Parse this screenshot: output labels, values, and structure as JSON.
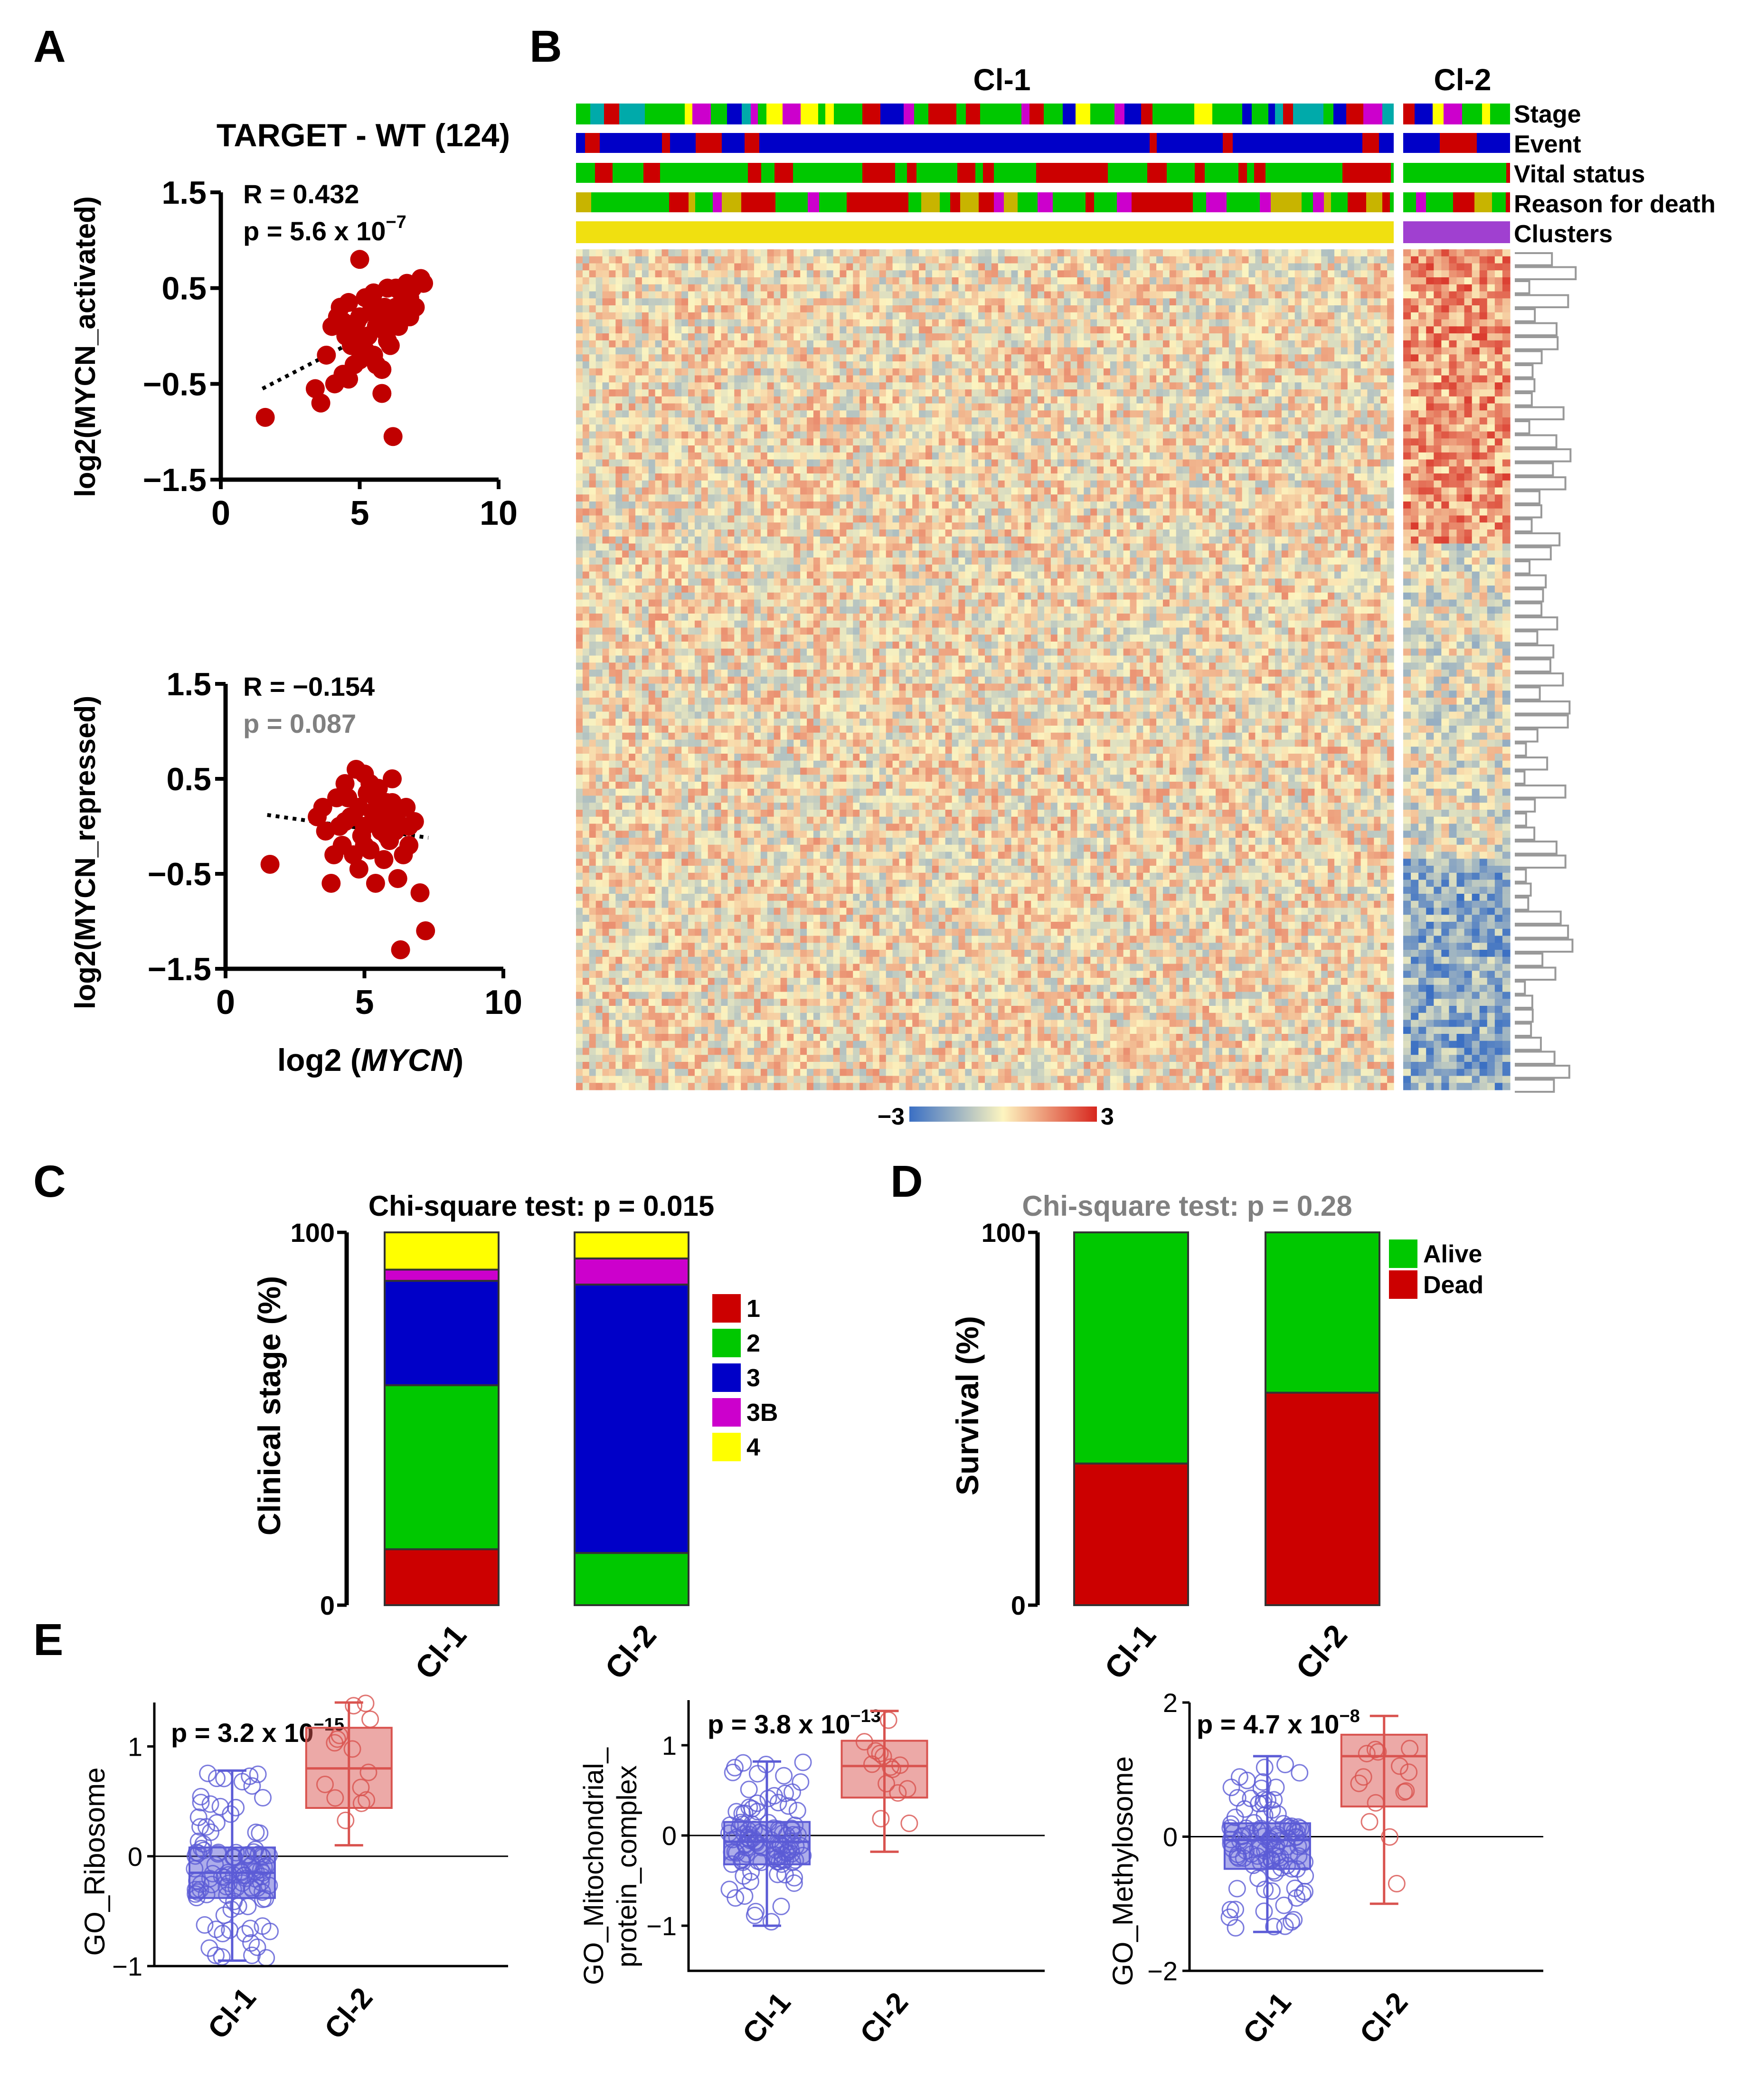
{
  "panels": [
    "A",
    "B",
    "C",
    "D",
    "E"
  ],
  "chart_data": [
    {
      "id": "A1",
      "type": "scatter",
      "title": "TARGET - WT (124)",
      "xlabel": "",
      "ylabel": "log2(MYCN_activated)",
      "xlim": [
        0,
        10
      ],
      "ylim": [
        -1.5,
        1.5
      ],
      "xticks": [
        "0",
        "5",
        "10"
      ],
      "yticks": [
        "1.5",
        "0.5",
        "−0.5",
        "−1.5"
      ],
      "stat_r": "R = 0.432",
      "stat_p_base": "p = 5.6 x 10",
      "stat_p_exp": "−7",
      "color": "#c00000",
      "trend": {
        "x": [
          1.5,
          7.3
        ],
        "y": [
          -0.55,
          0.32
        ]
      },
      "x": [
        1.6,
        3.4,
        3.8,
        4.0,
        4.3,
        4.4,
        4.5,
        4.6,
        4.7,
        4.8,
        4.9,
        5.0,
        5.0,
        5.1,
        5.2,
        5.3,
        5.4,
        5.5,
        5.5,
        5.6,
        5.7,
        5.8,
        5.9,
        6.0,
        6.0,
        6.1,
        6.2,
        6.3,
        6.4,
        6.5,
        6.6,
        6.7,
        6.8,
        6.9,
        7.0,
        7.2,
        7.3,
        3.6,
        4.1,
        4.6,
        5.2,
        5.8,
        6.2,
        4.8,
        5.6,
        6.5,
        4.2,
        5.4,
        6.0,
        6.8,
        5.0,
        4.4,
        5.9,
        6.3
      ],
      "y": [
        -0.85,
        -0.55,
        -0.2,
        0.1,
        0.3,
        -0.4,
        0.0,
        0.35,
        -0.1,
        -0.3,
        0.15,
        0.8,
        0.2,
        -0.05,
        0.4,
        0.0,
        0.25,
        -0.2,
        0.45,
        0.1,
        0.3,
        -0.35,
        0.05,
        0.5,
        0.2,
        -0.1,
        -1.05,
        0.3,
        0.1,
        0.45,
        0.35,
        0.55,
        0.2,
        0.5,
        0.3,
        0.6,
        0.55,
        -0.7,
        -0.5,
        -0.45,
        -0.15,
        -0.6,
        0.1,
        0.05,
        -0.3,
        0.25,
        0.2,
        0.35,
        -0.05,
        0.4,
        -0.25,
        0.15,
        0.3,
        0.5
      ]
    },
    {
      "id": "A2",
      "type": "scatter",
      "xlabel": "log2 (MYCN)",
      "xlabel_prefix": "log2 (",
      "xlabel_italic": "MYCN",
      "xlabel_suffix": ")",
      "ylabel": "log2(MYCN_repressed)",
      "xlim": [
        0,
        10
      ],
      "ylim": [
        -1.5,
        1.5
      ],
      "xticks": [
        "0",
        "5",
        "10"
      ],
      "yticks": [
        "1.5",
        "0.5",
        "−0.5",
        "−1.5"
      ],
      "stat_r": "R = −0.154",
      "stat_p": "p = 0.087",
      "color": "#c00000",
      "trend": {
        "x": [
          1.5,
          7.3
        ],
        "y": [
          0.12,
          -0.12
        ]
      },
      "x": [
        1.6,
        3.3,
        3.6,
        3.8,
        4.0,
        4.2,
        4.3,
        4.5,
        4.6,
        4.7,
        4.8,
        4.9,
        5.0,
        5.0,
        5.1,
        5.2,
        5.3,
        5.4,
        5.5,
        5.6,
        5.7,
        5.8,
        5.9,
        6.0,
        6.1,
        6.2,
        6.3,
        6.5,
        6.6,
        6.8,
        7.0,
        7.2,
        3.5,
        4.1,
        4.4,
        4.8,
        5.2,
        5.6,
        6.0,
        6.4,
        4.6,
        5.4,
        5.8,
        6.2,
        3.9,
        5.0,
        6.6,
        4.3,
        5.7,
        6.1
      ],
      "y": [
        -0.4,
        0.1,
        -0.05,
        -0.6,
        0.3,
        -0.2,
        0.45,
        0.1,
        -0.3,
        0.6,
        0.2,
        -0.1,
        0.55,
        0.0,
        0.35,
        -0.25,
        0.15,
        -0.6,
        0.4,
        0.05,
        -0.35,
        0.25,
        -0.15,
        0.5,
        0.1,
        -0.55,
        -1.3,
        0.2,
        -0.2,
        0.05,
        -0.7,
        -1.1,
        0.2,
        0.0,
        0.3,
        -0.45,
        0.45,
        -0.05,
        0.25,
        -0.3,
        0.1,
        0.3,
        -0.1,
        0.15,
        -0.3,
        -0.2,
        0.0,
        0.05,
        0.2,
        -0.05
      ]
    },
    {
      "id": "B",
      "type": "heatmap",
      "groups": [
        "Cl-1",
        "Cl-2"
      ],
      "annotation_rows": [
        "Stage",
        "Event",
        "Vital status",
        "Reason for death",
        "Clusters"
      ],
      "scale_min": "−3",
      "scale_max": "3",
      "scale_colors": [
        "#3a6fc4",
        "#fdf5c0",
        "#d7261e"
      ]
    },
    {
      "id": "C",
      "type": "bar",
      "stacked": true,
      "title": "Chi-square test: p = 0.015",
      "ylabel": "Clinical stage (%)",
      "categories": [
        "Cl-1",
        "Cl-2"
      ],
      "ylim": [
        0,
        100
      ],
      "yticks": [
        "0",
        "100"
      ],
      "series": [
        {
          "name": "1",
          "color": "#cc0000",
          "values": [
            15,
            0
          ]
        },
        {
          "name": "2",
          "color": "#00c800",
          "values": [
            44,
            14
          ]
        },
        {
          "name": "3",
          "color": "#0000c8",
          "values": [
            28,
            72
          ]
        },
        {
          "name": "3B",
          "color": "#cc00cc",
          "values": [
            3,
            7
          ]
        },
        {
          "name": "4",
          "color": "#ffff00",
          "values": [
            10,
            7
          ]
        }
      ]
    },
    {
      "id": "D",
      "type": "bar",
      "stacked": true,
      "title": "Chi-square test: p = 0.28",
      "ylabel": "Survival (%)",
      "categories": [
        "Cl-1",
        "Cl-2"
      ],
      "ylim": [
        0,
        100
      ],
      "yticks": [
        "0",
        "100"
      ],
      "series": [
        {
          "name": "Dead",
          "color": "#cc0000",
          "values": [
            38,
            57
          ]
        },
        {
          "name": "Alive",
          "color": "#00c800",
          "values": [
            62,
            43
          ]
        }
      ],
      "legend_order": [
        "Alive",
        "Dead"
      ]
    },
    {
      "id": "E1",
      "type": "box",
      "ylabel": "GO_Ribosome",
      "categories": [
        "Cl-1",
        "Cl-2"
      ],
      "ylim": [
        -1,
        1.4
      ],
      "yticks": [
        "1",
        "0",
        "−1"
      ],
      "ytick_values": [
        1,
        0,
        -1
      ],
      "stat_base": "p = 3.2 x 10",
      "stat_exp": "−15",
      "boxes": [
        {
          "min": -0.95,
          "q1": -0.38,
          "median": -0.15,
          "q3": 0.08,
          "max": 0.78,
          "color": "#5b5bd6"
        },
        {
          "min": 0.1,
          "q1": 0.44,
          "median": 0.8,
          "q3": 1.17,
          "max": 1.4,
          "color": "#d9534f"
        }
      ]
    },
    {
      "id": "E2",
      "type": "box",
      "ylabel": "GO_Mitochondrial_ protein_complex",
      "ylabel_line1": "GO_Mitochondrial_",
      "ylabel_line2": "protein_complex",
      "categories": [
        "Cl-1",
        "Cl-2"
      ],
      "ylim": [
        -1.5,
        1.5
      ],
      "yticks": [
        "1",
        "0",
        "−1"
      ],
      "ytick_values": [
        1,
        0,
        -1
      ],
      "stat_base": "p = 3.8 x 10",
      "stat_exp": "−13",
      "boxes": [
        {
          "min": -1.0,
          "q1": -0.32,
          "median": -0.07,
          "q3": 0.15,
          "max": 0.82,
          "color": "#5b5bd6"
        },
        {
          "min": -0.18,
          "q1": 0.42,
          "median": 0.77,
          "q3": 1.05,
          "max": 1.38,
          "color": "#d9534f"
        }
      ]
    },
    {
      "id": "E3",
      "type": "box",
      "ylabel": "GO_Methylosome",
      "categories": [
        "Cl-1",
        "Cl-2"
      ],
      "ylim": [
        -2,
        2
      ],
      "yticks": [
        "2",
        "0",
        "−2"
      ],
      "ytick_values": [
        2,
        0,
        -2
      ],
      "stat_base": "p = 4.7 x 10",
      "stat_exp": "−8",
      "boxes": [
        {
          "min": -1.42,
          "q1": -0.48,
          "median": -0.05,
          "q3": 0.2,
          "max": 1.2,
          "color": "#5b5bd6"
        },
        {
          "min": -1.0,
          "q1": 0.45,
          "median": 1.2,
          "q3": 1.52,
          "max": 1.8,
          "color": "#d9534f"
        }
      ]
    }
  ]
}
